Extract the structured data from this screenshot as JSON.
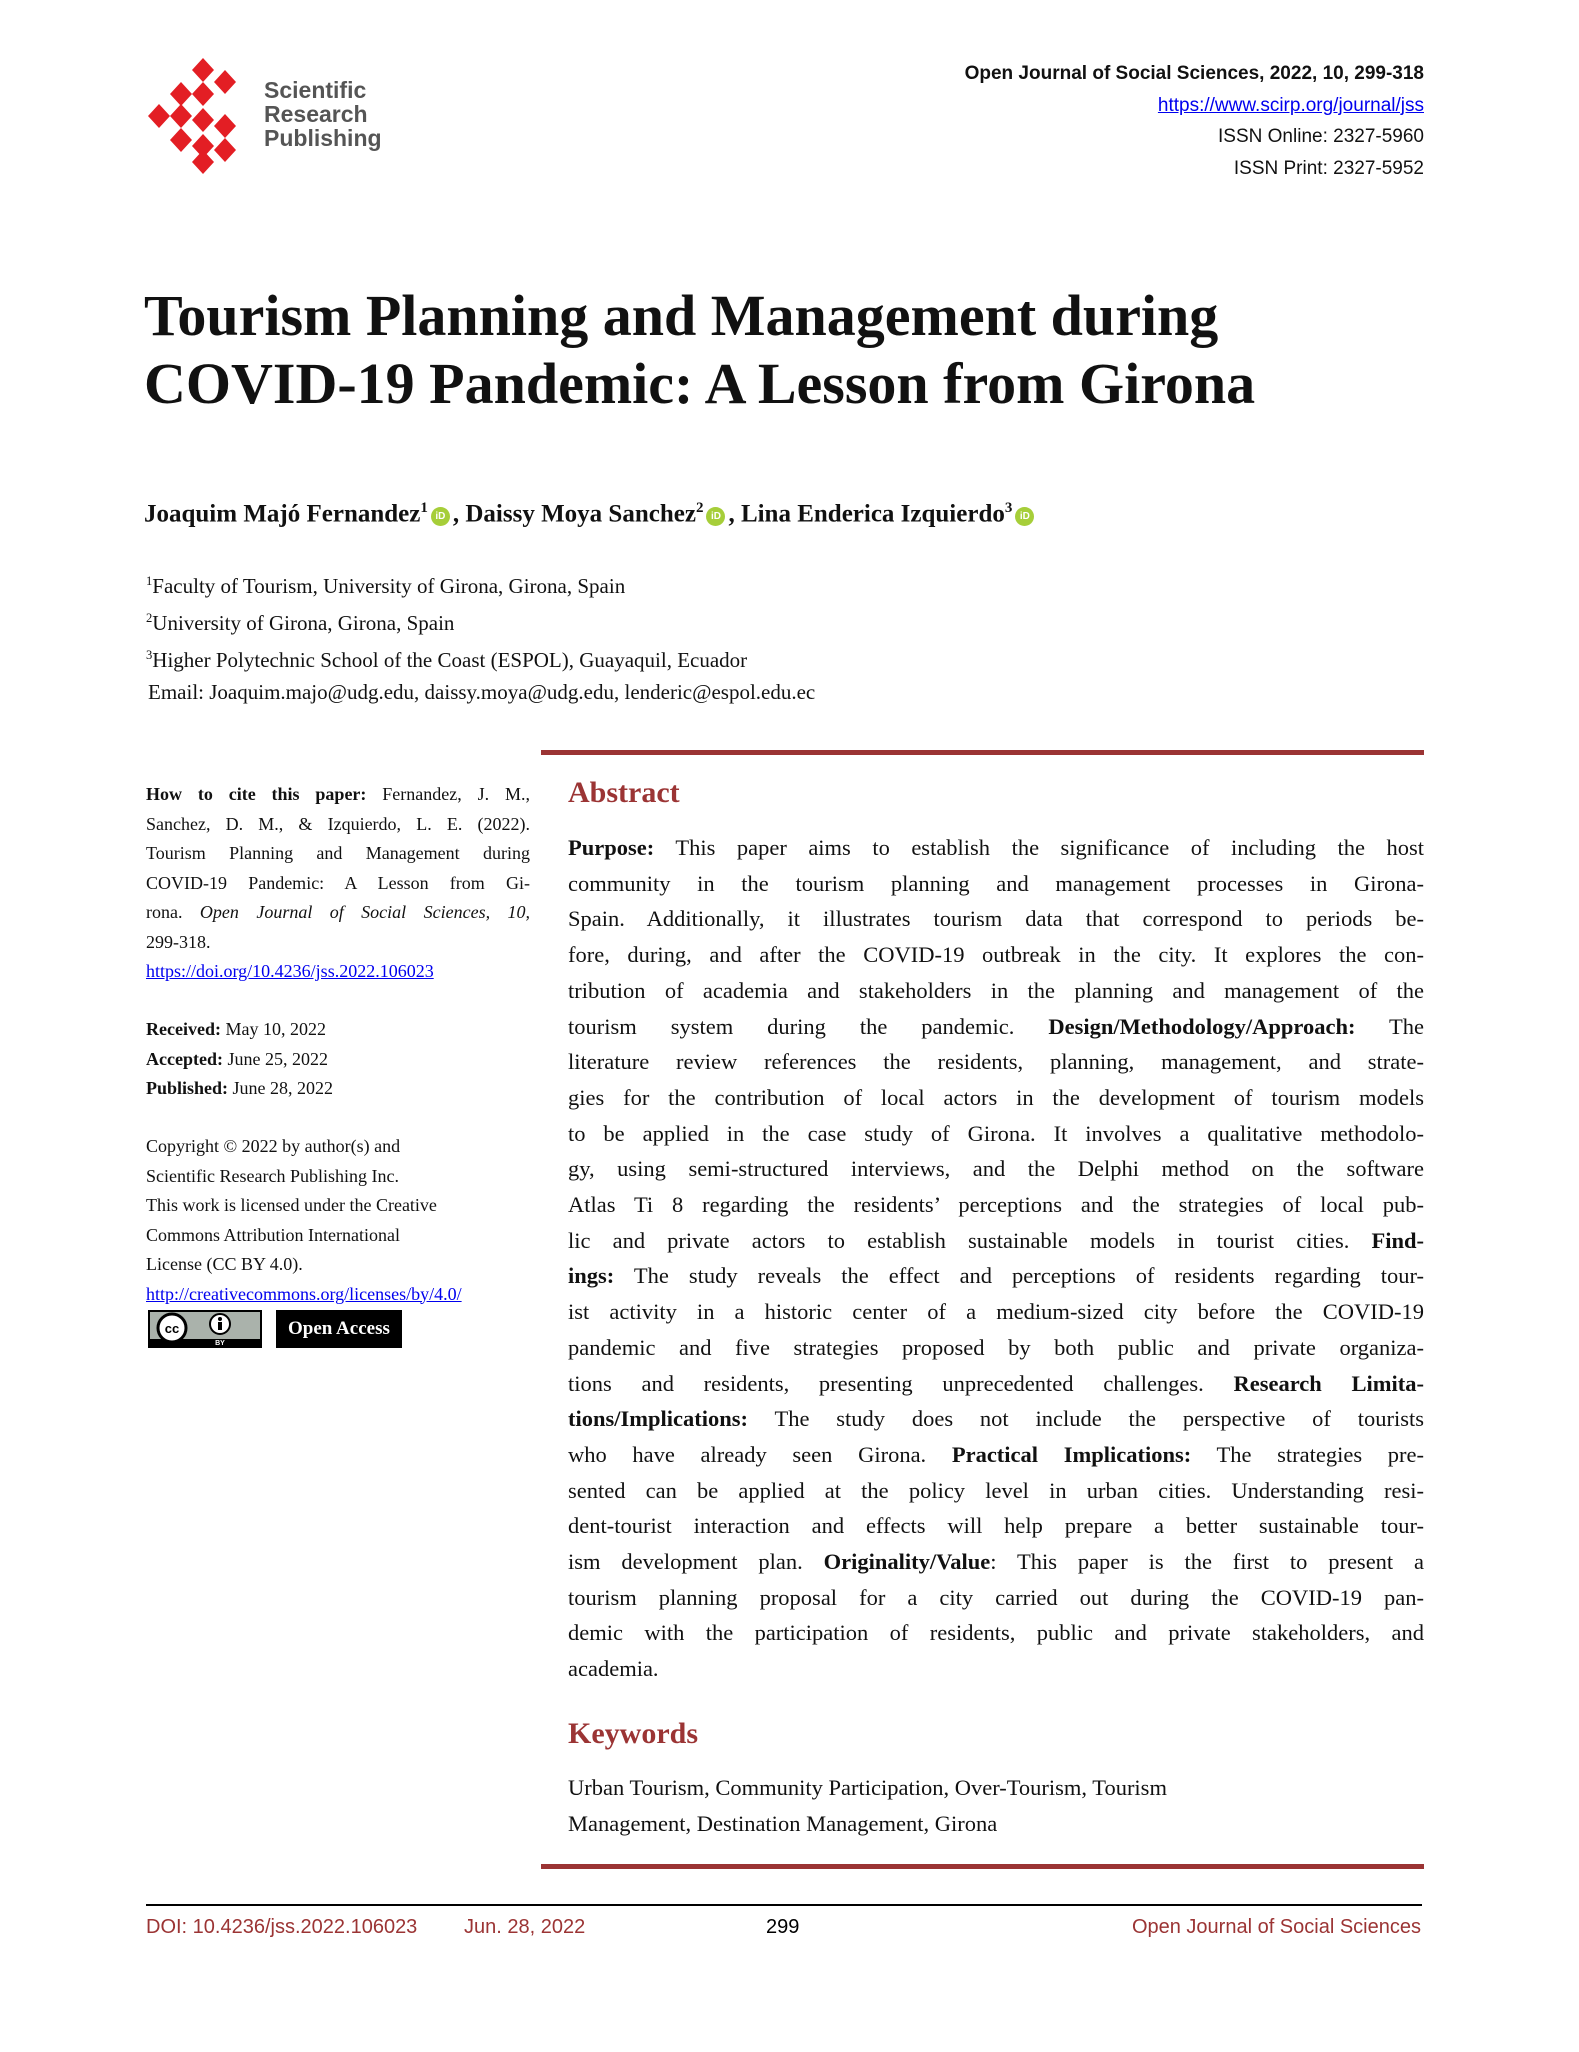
{
  "publisher_logo": {
    "text_lines": [
      "Scientific",
      "Research",
      "Publishing"
    ],
    "color": "#e31e24"
  },
  "header": {
    "journal": "Open Journal of Social Sciences, 2022, 10, 299-318",
    "url": "https://www.scirp.org/journal/jss",
    "issn_online": "ISSN Online: 2327-5960",
    "issn_print": "ISSN Print: 2327-5952"
  },
  "title": {
    "line1": "Tourism Planning and Management during",
    "line2": "COVID-19 Pandemic: A Lesson from Girona"
  },
  "authors": [
    {
      "name": "Joaquim Majó Fernandez",
      "sup": "1",
      "sep": ", "
    },
    {
      "name": "Daissy Moya Sanchez",
      "sup": "2",
      "sep": ", "
    },
    {
      "name": "Lina Enderica Izquierdo",
      "sup": "3",
      "sep": ""
    }
  ],
  "orcid_icon": "iD",
  "affiliations": [
    {
      "sup": "1",
      "text": "Faculty of Tourism, University of Girona, Girona, Spain"
    },
    {
      "sup": "2",
      "text": "University of Girona, Girona, Spain"
    },
    {
      "sup": "3",
      "text": "Higher Polytechnic School of the Coast (ESPOL), Guayaquil, Ecuador"
    }
  ],
  "email": "Email: Joaquim.majo@udg.edu, daissy.moya@udg.edu, lenderic@espol.edu.ec",
  "sidebar": {
    "cite_label": "How to cite this paper:",
    "cite_lines": [
      "Fernandez, J. M.,",
      "Sanchez, D. M., & Izquierdo, L. E. (2022).",
      "Tourism Planning and Management during",
      "COVID-19 Pandemic: A Lesson from Gi-"
    ],
    "cite_last_plain": "rona.",
    "cite_last_italic": "Open Journal of Social Sciences, 10,",
    "cite_pages": "299-318.",
    "doi_link": "https://doi.org/10.4236/jss.2022.106023",
    "received_label": "Received:",
    "received": "May 10, 2022",
    "accepted_label": "Accepted:",
    "accepted": "June 25, 2022",
    "published_label": "Published:",
    "published": "June 28, 2022",
    "copyright_lines": [
      "Copyright © 2022 by author(s) and",
      "Scientific Research Publishing Inc.",
      "This work is licensed under the Creative",
      "Commons Attribution International",
      "License (CC BY 4.0)."
    ],
    "license_link": "http://creativecommons.org/licenses/by/4.0/",
    "cc_badge": {
      "cc": "cc",
      "by": "BY"
    },
    "open_access": "Open Access"
  },
  "abstract": {
    "heading": "Abstract",
    "lines": [
      [
        {
          "t": "Purpose:",
          "b": true
        },
        {
          "t": " This paper aims to establish the significance of including the host"
        }
      ],
      [
        {
          "t": "community in the tourism planning and management processes in Girona-"
        }
      ],
      [
        {
          "t": "Spain. Additionally, it illustrates tourism data that correspond to periods be-"
        }
      ],
      [
        {
          "t": "fore, during, and after the COVID-19 outbreak in the city. It explores the con-"
        }
      ],
      [
        {
          "t": "tribution of academia and stakeholders in the planning and management of the"
        }
      ],
      [
        {
          "t": "tourism system during the pandemic. "
        },
        {
          "t": "Design/Methodology/Approach:",
          "b": true
        },
        {
          "t": " The"
        }
      ],
      [
        {
          "t": "literature review references the residents, planning, management, and strate-"
        }
      ],
      [
        {
          "t": "gies for the contribution of local actors in the development of tourism models"
        }
      ],
      [
        {
          "t": "to be applied in the case study of Girona. It involves a qualitative methodolo-"
        }
      ],
      [
        {
          "t": "gy, using semi-structured interviews, and the Delphi method on the software"
        }
      ],
      [
        {
          "t": "Atlas Ti 8 regarding the residents’ perceptions and the strategies of local pub-"
        }
      ],
      [
        {
          "t": "lic and private actors to establish sustainable models in tourist cities. "
        },
        {
          "t": "Find-",
          "b": true
        }
      ],
      [
        {
          "t": "ings:",
          "b": true
        },
        {
          "t": " The study reveals the effect and perceptions of residents regarding tour-"
        }
      ],
      [
        {
          "t": "ist activity in a historic center of a medium-sized city before the COVID-19"
        }
      ],
      [
        {
          "t": "pandemic and five strategies proposed by both public and private organiza-"
        }
      ],
      [
        {
          "t": "tions and residents, presenting unprecedented challenges. "
        },
        {
          "t": "Research Limita-",
          "b": true
        }
      ],
      [
        {
          "t": "tions/Implications:",
          "b": true
        },
        {
          "t": " The study does not include the perspective of tourists"
        }
      ],
      [
        {
          "t": "who have already seen Girona. "
        },
        {
          "t": "Practical Implications:",
          "b": true
        },
        {
          "t": " The strategies pre-"
        }
      ],
      [
        {
          "t": "sented can be applied at the policy level in urban cities. Understanding resi-"
        }
      ],
      [
        {
          "t": "dent-tourist interaction and effects will help prepare a better sustainable tour-"
        }
      ],
      [
        {
          "t": "ism development plan. "
        },
        {
          "t": "Originality/Value",
          "b": true
        },
        {
          "t": ": This paper is the first to present a"
        }
      ],
      [
        {
          "t": "tourism planning proposal for a city carried out during the COVID-19 pan-"
        }
      ],
      [
        {
          "t": "demic with the participation of residents, public and private stakeholders, and"
        }
      ],
      [
        {
          "t": "academia."
        }
      ]
    ]
  },
  "keywords": {
    "heading": "Keywords",
    "lines": [
      "Urban Tourism, Community Participation, Over-Tourism, Tourism",
      "Management, Destination Management, Girona"
    ]
  },
  "footer": {
    "doi": "DOI: 10.4236/jss.2022.106023",
    "date": "Jun. 28, 2022",
    "page": "299",
    "journal": "Open Journal of Social Sciences",
    "color": "#9b3434"
  },
  "accent_color": "#9b3434"
}
